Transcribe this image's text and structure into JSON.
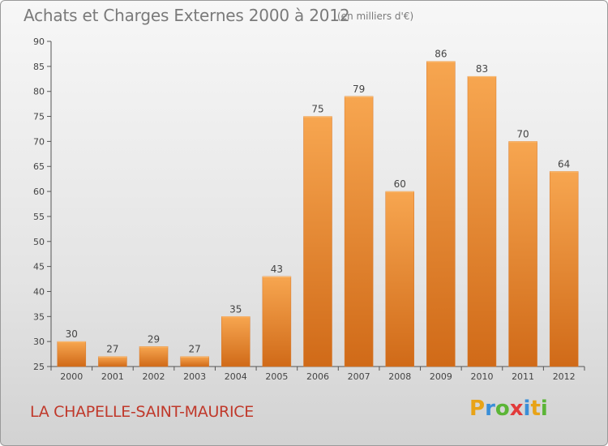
{
  "chart_data": {
    "type": "bar",
    "title": "Achats et Charges Externes 2000 à 2012",
    "subtitle": "(en milliers d'€)",
    "xlabel": "",
    "ylabel": "",
    "categories": [
      "2000",
      "2001",
      "2002",
      "2003",
      "2004",
      "2005",
      "2006",
      "2007",
      "2008",
      "2009",
      "2010",
      "2011",
      "2012"
    ],
    "values": [
      30,
      27,
      29,
      27,
      35,
      43,
      75,
      79,
      60,
      86,
      83,
      70,
      64
    ],
    "ylim": [
      25,
      90
    ],
    "yticks": [
      25,
      30,
      35,
      40,
      45,
      50,
      55,
      60,
      65,
      70,
      75,
      80,
      85,
      90
    ],
    "grid": false,
    "legend": "none",
    "bar_color": "#f0923a"
  },
  "footer": {
    "commune": "LA CHAPELLE-SAINT-MAURICE"
  },
  "logo": {
    "letters": [
      "P",
      "r",
      "o",
      "x",
      "i",
      "t",
      "i"
    ],
    "colors": [
      "#e8a317",
      "#3a8fd8",
      "#5bb536",
      "#e23b3b",
      "#3a8fd8",
      "#e8a317",
      "#5bb536"
    ]
  }
}
